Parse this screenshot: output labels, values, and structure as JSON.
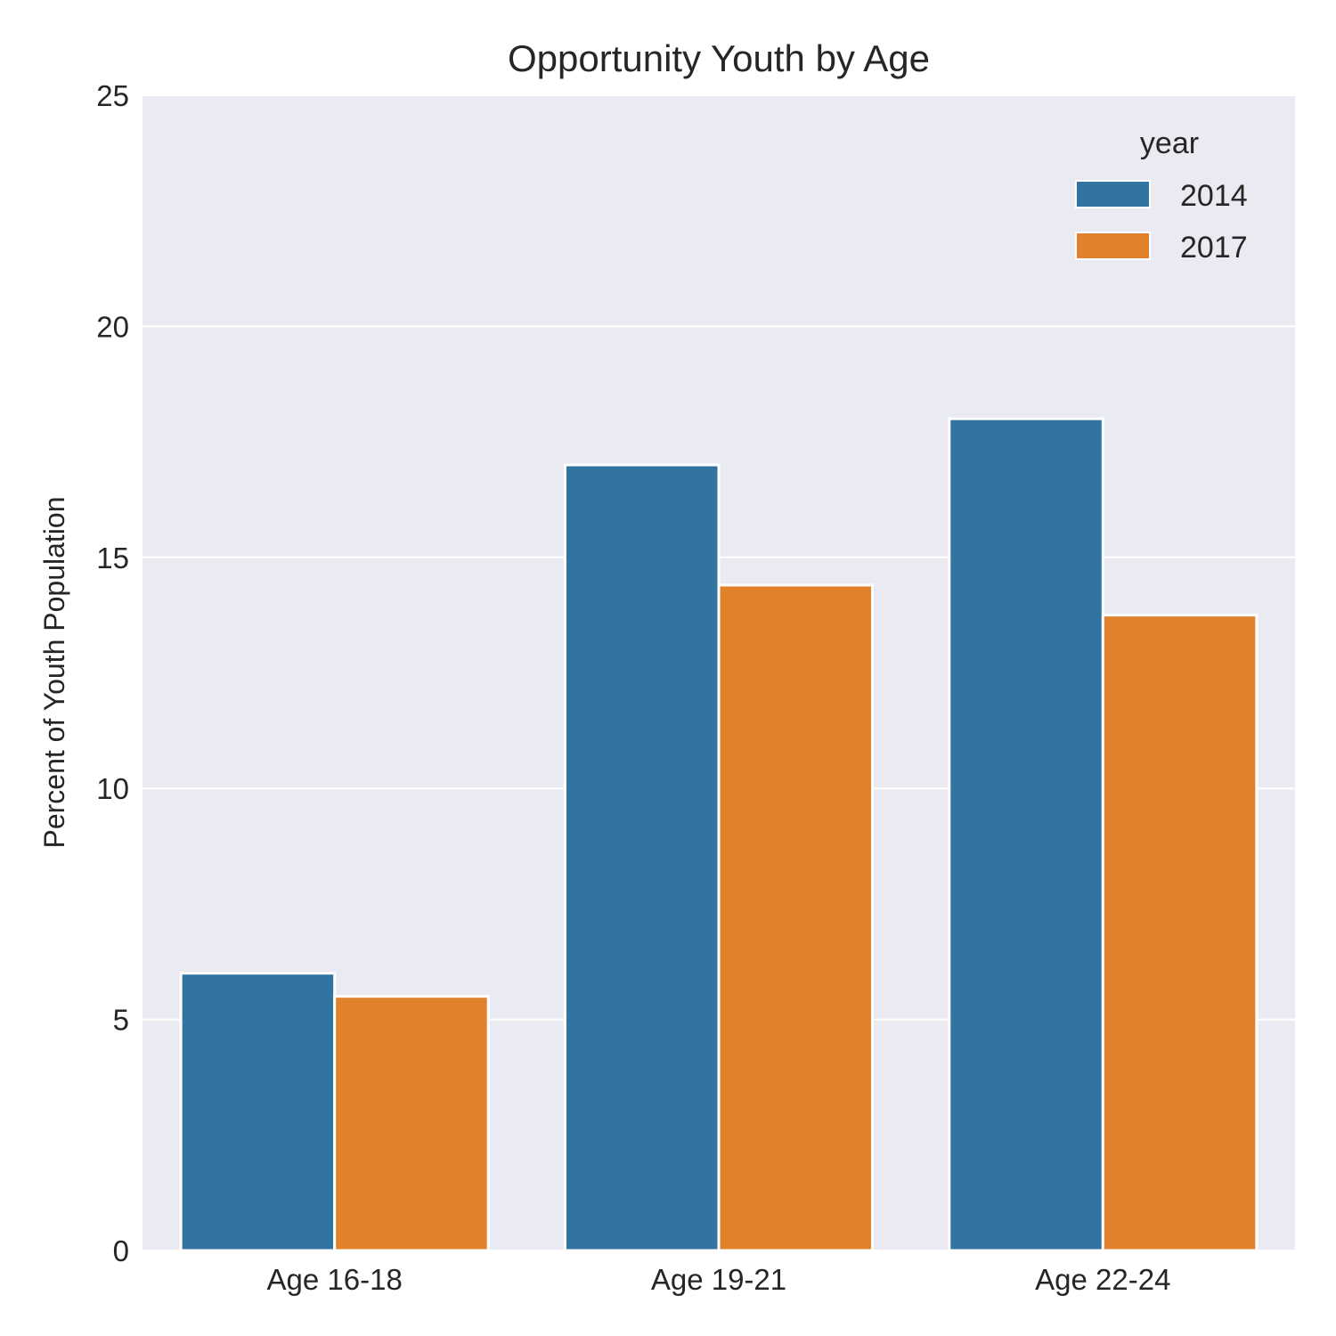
{
  "chart_data": {
    "type": "bar",
    "title": "Opportunity Youth by Age",
    "xlabel": "",
    "ylabel": "Percent of Youth Population",
    "categories": [
      "Age 16-18",
      "Age 19-21",
      "Age 22-24"
    ],
    "series": [
      {
        "name": "2014",
        "values": [
          6.0,
          17.0,
          18.0
        ],
        "color": "#3274a1"
      },
      {
        "name": "2017",
        "values": [
          5.5,
          14.4,
          13.75
        ],
        "color": "#e1812c"
      }
    ],
    "ylim": [
      0,
      25
    ],
    "yticks": [
      "0",
      "5",
      "10",
      "15",
      "20",
      "25"
    ],
    "grid": true,
    "legend": {
      "title": "year",
      "placement": "top-right"
    },
    "colors": {
      "background": "#eaeaf2",
      "grid": "#ffffff",
      "bar_edge": "#ffffff"
    }
  }
}
